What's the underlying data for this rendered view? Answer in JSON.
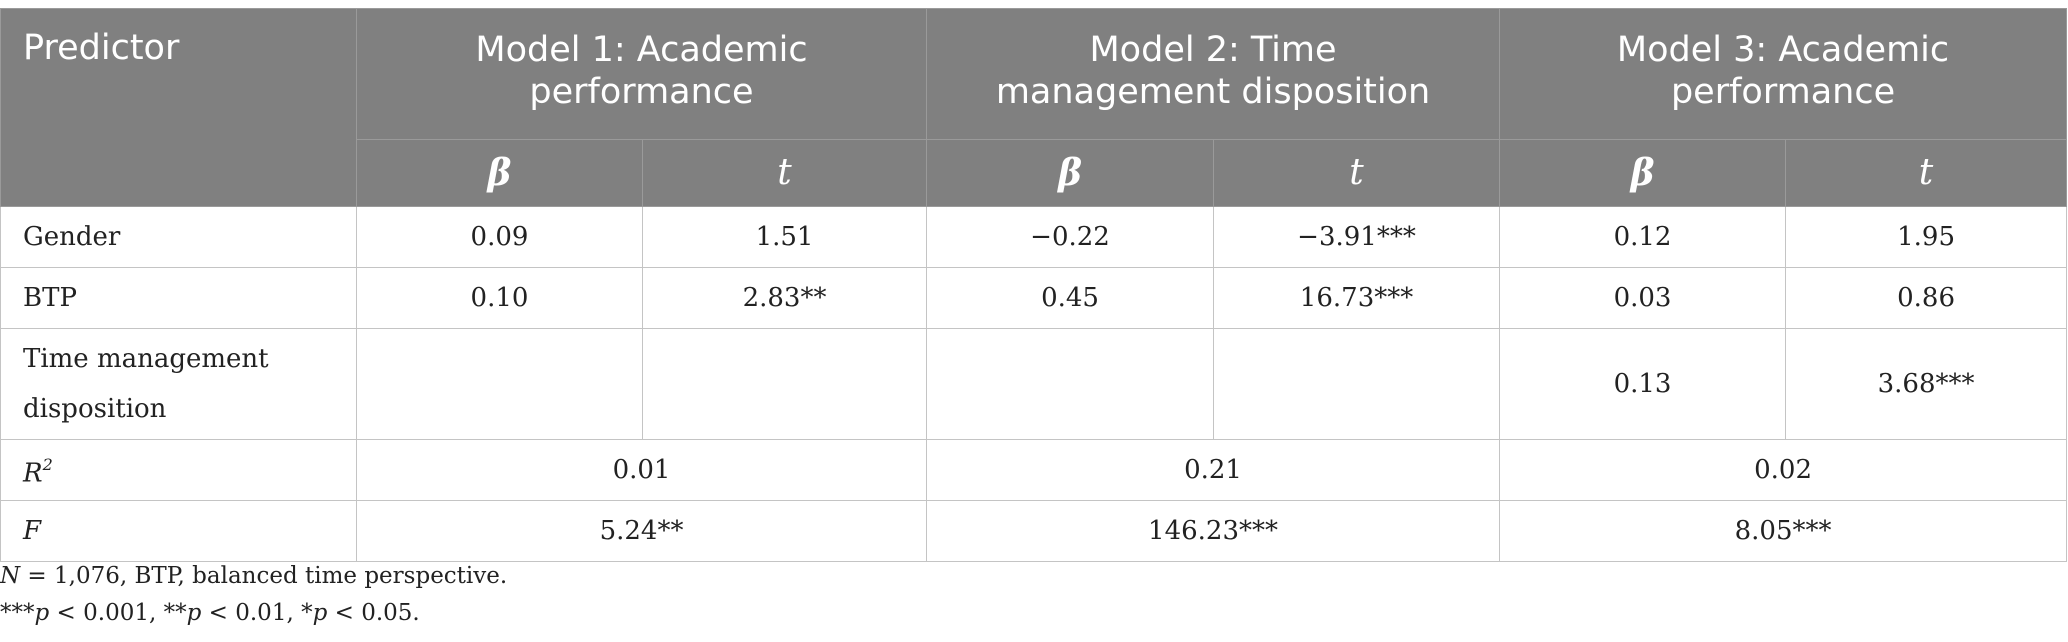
{
  "header": {
    "predictor": "Predictor",
    "models": [
      "Model 1: Academic performance",
      "Model 2: Time management disposition",
      "Model 3: Academic performance"
    ],
    "beta": "β",
    "t": "t"
  },
  "rows": [
    {
      "label": "Gender",
      "values": [
        "0.09",
        "1.51",
        "−0.22",
        "−3.91***",
        "0.12",
        "1.95"
      ]
    },
    {
      "label": "BTP",
      "values": [
        "0.10",
        "2.83**",
        "0.45",
        "16.73***",
        "0.03",
        "0.86"
      ]
    },
    {
      "label": "Time management disposition",
      "values": [
        "",
        "",
        "",
        "",
        "0.13",
        "3.68***"
      ]
    }
  ],
  "r2": {
    "label_main": "R",
    "label_sup": "2",
    "values": [
      "0.01",
      "0.21",
      "0.02"
    ]
  },
  "f": {
    "label": "F",
    "values": [
      "5.24**",
      "146.23***",
      "8.05***"
    ]
  },
  "notes": {
    "note1": {
      "n": "N",
      "rest": " = 1,076, BTP, balanced time perspective."
    },
    "note2": {
      "s1": "***",
      "p1": "p",
      "t1": " < 0.001, **",
      "p2": "p",
      "t2": " < 0.01, *",
      "p3": "p",
      "t3": " < 0.05."
    }
  }
}
